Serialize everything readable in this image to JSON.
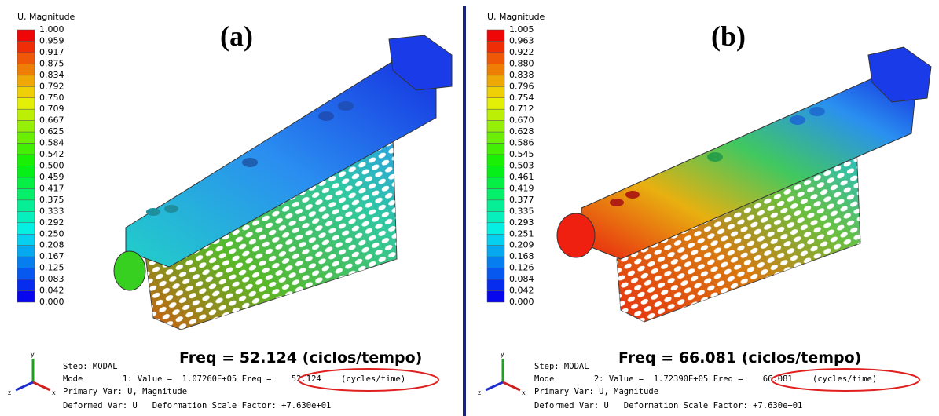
{
  "panels": [
    {
      "label": "(a)",
      "legend": {
        "title": "U, Magnitude",
        "labels": [
          "1.000",
          "0.959",
          "0.917",
          "0.875",
          "0.834",
          "0.792",
          "0.750",
          "0.709",
          "0.667",
          "0.625",
          "0.584",
          "0.542",
          "0.500",
          "0.459",
          "0.417",
          "0.375",
          "0.333",
          "0.292",
          "0.250",
          "0.208",
          "0.167",
          "0.125",
          "0.083",
          "0.042",
          "0.000"
        ]
      },
      "caption": "Freq = 52.124 (ciclos/tempo)",
      "info": [
        "Step: MODAL",
        "Mode        1: Value =  1.07260E+05 Freq =    52.124    (cycles/time)",
        "Primary Var: U, Magnitude",
        "Deformed Var: U   Deformation Scale Factor: +7.630e+01"
      ],
      "triad": [
        "y",
        "x",
        "z"
      ]
    },
    {
      "label": "(b)",
      "legend": {
        "title": "U, Magnitude",
        "labels": [
          "1.005",
          "0.963",
          "0.922",
          "0.880",
          "0.838",
          "0.796",
          "0.754",
          "0.712",
          "0.670",
          "0.628",
          "0.586",
          "0.545",
          "0.503",
          "0.461",
          "0.419",
          "0.377",
          "0.335",
          "0.293",
          "0.251",
          "0.209",
          "0.168",
          "0.126",
          "0.084",
          "0.042",
          "0.000"
        ]
      },
      "caption": "Freq = 66.081 (ciclos/tempo)",
      "info": [
        "Step: MODAL",
        "Mode        2: Value =  1.72390E+05 Freq =    66.081    (cycles/time)",
        "Primary Var: U, Magnitude",
        "Deformed Var: U   Deformation Scale Factor: +7.630e+01"
      ],
      "triad": [
        "y",
        "x",
        "z"
      ]
    }
  ]
}
